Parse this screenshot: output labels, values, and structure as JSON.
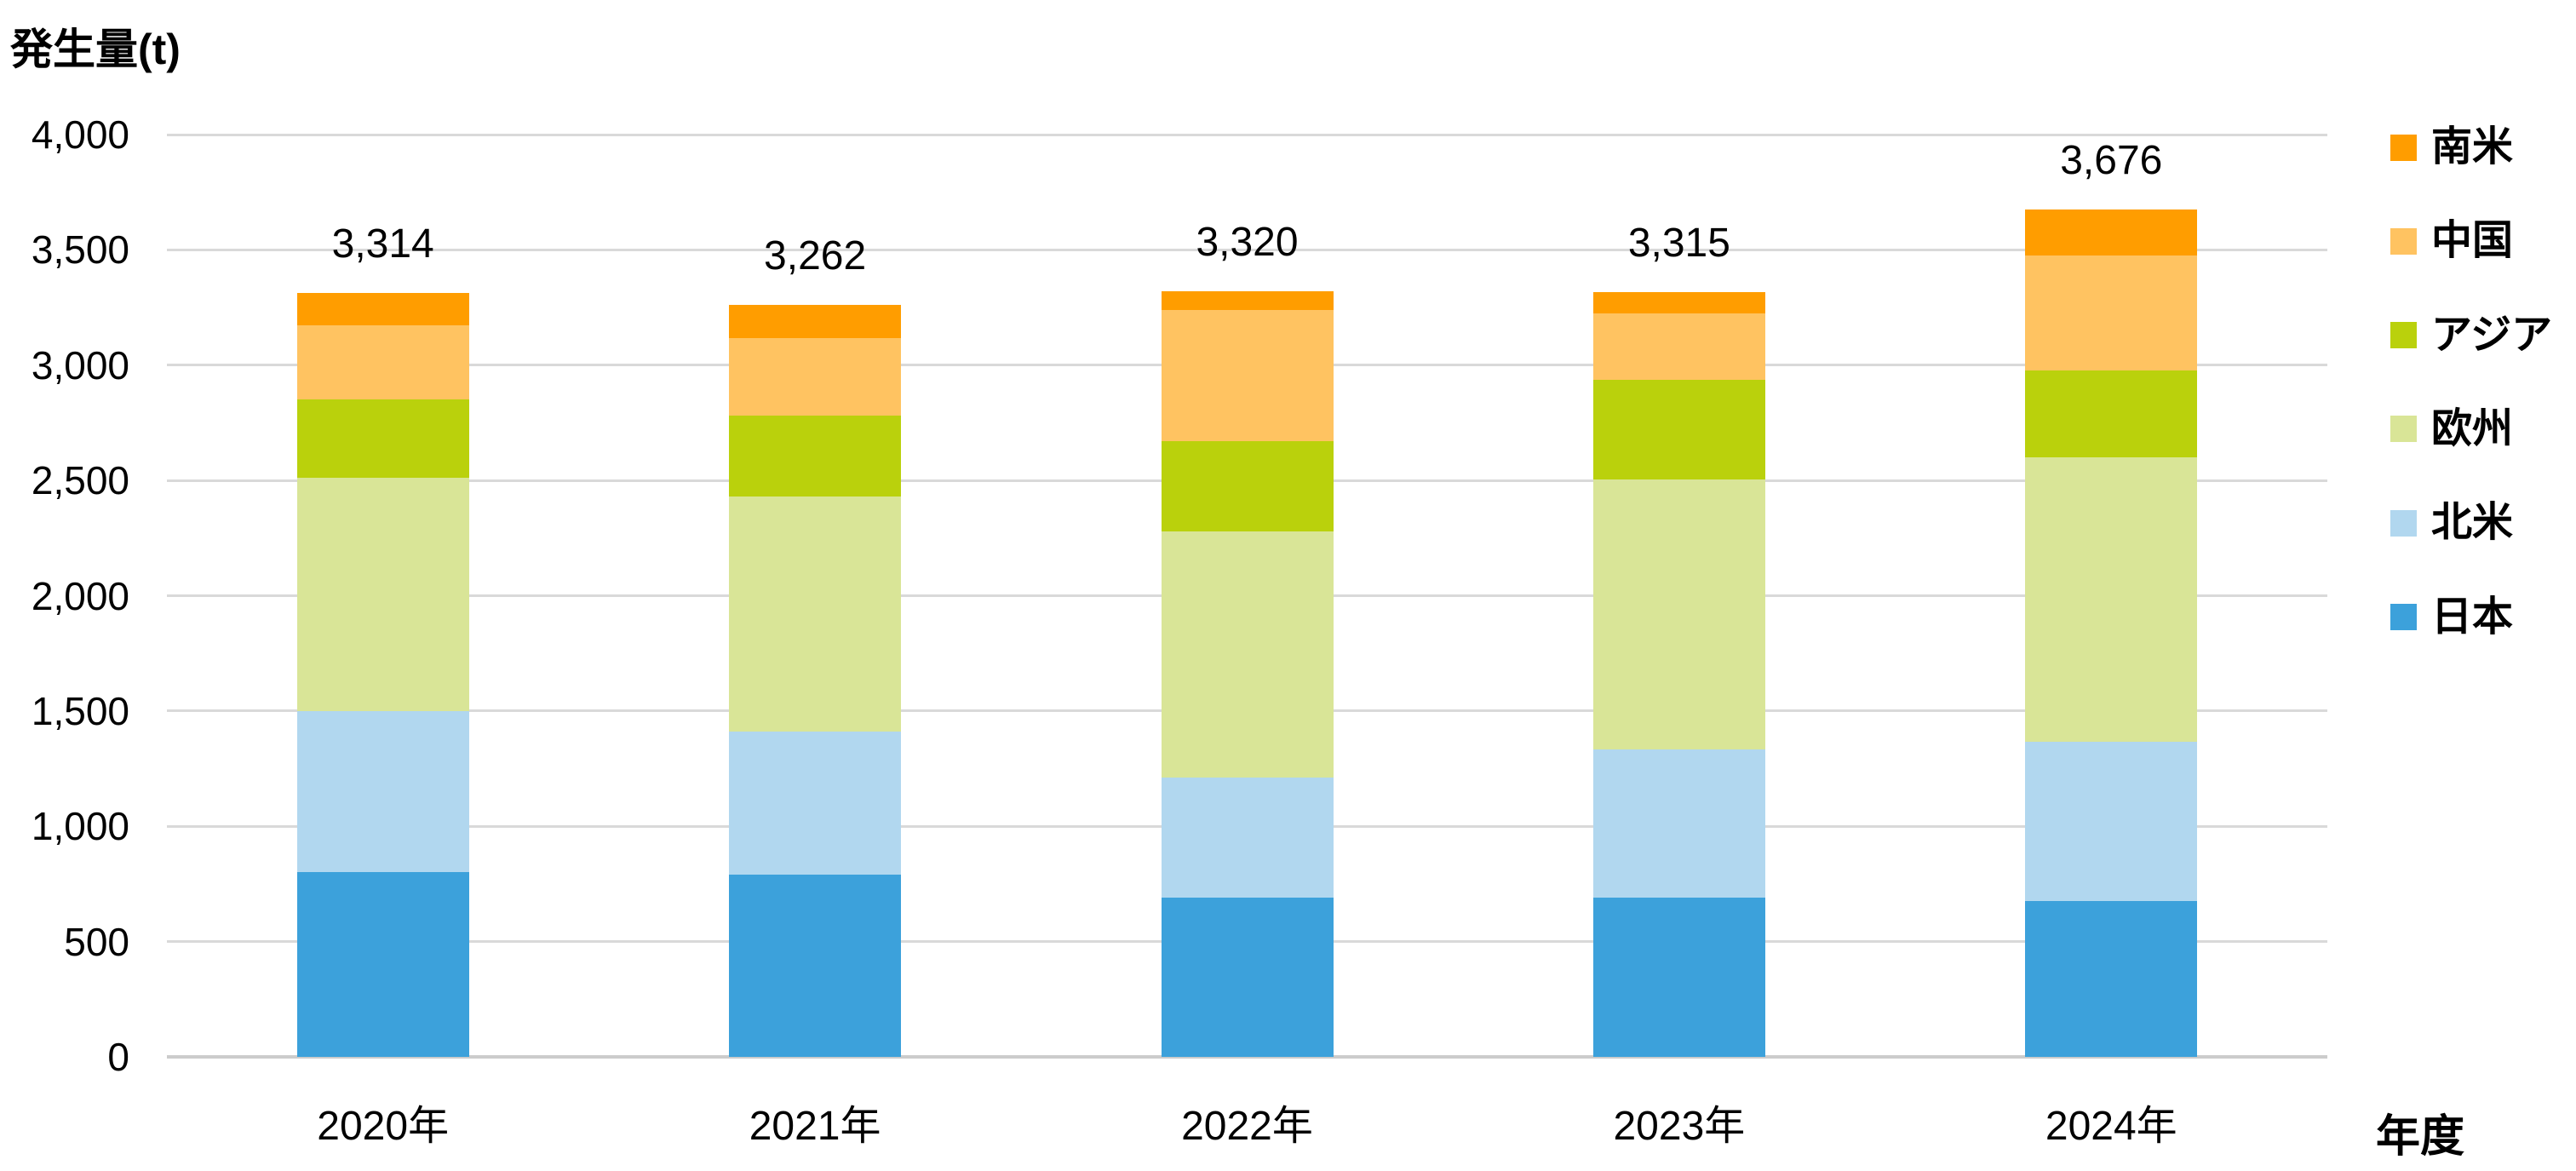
{
  "chart_data": {
    "type": "bar",
    "stacked": true,
    "title": "発生量(t)",
    "xlabel": "年度",
    "ylabel": "発生量(t)",
    "grid": true,
    "legend_position": "right",
    "ylim": [
      0,
      4000
    ],
    "ystep": 500,
    "yticks": [
      "0",
      "500",
      "1,000",
      "1,500",
      "2,000",
      "2,500",
      "3,000",
      "3,500",
      "4,000"
    ],
    "categories": [
      "2020年",
      "2021年",
      "2022年",
      "2023年",
      "2024年"
    ],
    "series": [
      {
        "name": "日本",
        "color": "#3CA1DB",
        "values": [
          800,
          790,
          690,
          690,
          675
        ]
      },
      {
        "name": "北米",
        "color": "#B1D7EF",
        "values": [
          700,
          620,
          520,
          645,
          690
        ]
      },
      {
        "name": "欧州",
        "color": "#D9E597",
        "values": [
          1010,
          1020,
          1070,
          1170,
          1236
        ]
      },
      {
        "name": "アジア",
        "color": "#BAD10C",
        "values": [
          340,
          350,
          390,
          430,
          375
        ]
      },
      {
        "name": "中国",
        "color": "#FFC361",
        "values": [
          324,
          337,
          570,
          290,
          500
        ]
      },
      {
        "name": "南米",
        "color": "#FF9D00",
        "values": [
          140,
          145,
          80,
          90,
          200
        ]
      }
    ],
    "totals": [
      3314,
      3262,
      3320,
      3315,
      3676
    ],
    "total_labels": [
      "3,314",
      "3,262",
      "3,320",
      "3,315",
      "3,676"
    ],
    "legend_order_top_to_bottom": [
      "南米",
      "中国",
      "アジア",
      "欧州",
      "北米",
      "日本"
    ]
  }
}
